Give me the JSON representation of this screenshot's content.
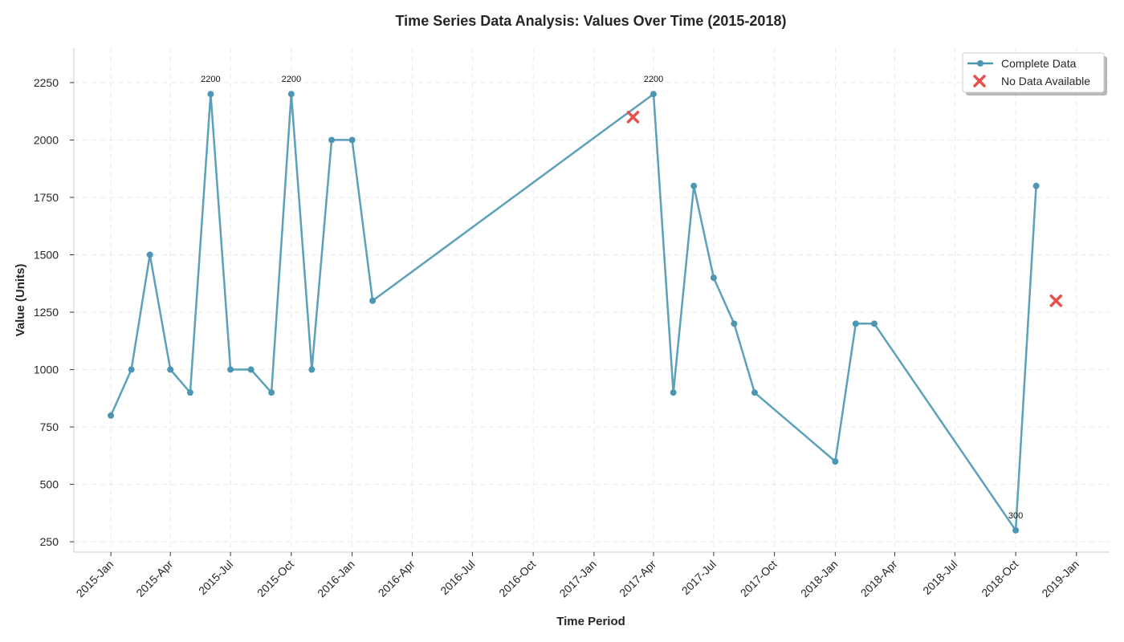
{
  "chart_data": {
    "type": "line",
    "title": "Time Series Data Analysis: Values Over Time (2015-2018)",
    "xlabel": "Time Period",
    "ylabel": "Value (Units)",
    "xlim": [
      "2014-11-06",
      "2019-02-20"
    ],
    "ylim": [
      205,
      2400
    ],
    "grid": true,
    "legend_position": "top-right",
    "x_ticks": [
      "2015-Jan",
      "2015-Apr",
      "2015-Jul",
      "2015-Oct",
      "2016-Jan",
      "2016-Apr",
      "2016-Jul",
      "2016-Oct",
      "2017-Jan",
      "2017-Apr",
      "2017-Jul",
      "2017-Oct",
      "2018-Jan",
      "2018-Apr",
      "2018-Jul",
      "2018-Oct",
      "2019-Jan"
    ],
    "x_tick_dates": [
      "2015-01-01",
      "2015-04-01",
      "2015-07-01",
      "2015-10-01",
      "2016-01-01",
      "2016-04-01",
      "2016-07-01",
      "2016-10-01",
      "2017-01-01",
      "2017-04-01",
      "2017-07-01",
      "2017-10-01",
      "2018-01-01",
      "2018-04-01",
      "2018-07-01",
      "2018-10-01",
      "2019-01-01"
    ],
    "y_ticks": [
      250,
      500,
      750,
      1000,
      1250,
      1500,
      1750,
      2000,
      2250
    ],
    "series": [
      {
        "name": "Complete Data",
        "color": "#4a96b3",
        "marker": "circle",
        "points": [
          {
            "x": "2015-01-01",
            "y": 800
          },
          {
            "x": "2015-02-01",
            "y": 1000
          },
          {
            "x": "2015-03-01",
            "y": 1500
          },
          {
            "x": "2015-04-01",
            "y": 1000
          },
          {
            "x": "2015-05-01",
            "y": 900
          },
          {
            "x": "2015-06-01",
            "y": 2200
          },
          {
            "x": "2015-07-01",
            "y": 1000
          },
          {
            "x": "2015-08-01",
            "y": 1000
          },
          {
            "x": "2015-09-01",
            "y": 900
          },
          {
            "x": "2015-10-01",
            "y": 2200
          },
          {
            "x": "2015-11-01",
            "y": 1000
          },
          {
            "x": "2015-12-01",
            "y": 2000
          },
          {
            "x": "2016-01-01",
            "y": 2000
          },
          {
            "x": "2016-02-01",
            "y": 1300
          },
          {
            "x": "2017-04-01",
            "y": 2200
          },
          {
            "x": "2017-05-01",
            "y": 900
          },
          {
            "x": "2017-06-01",
            "y": 1800
          },
          {
            "x": "2017-07-01",
            "y": 1400
          },
          {
            "x": "2017-08-01",
            "y": 1200
          },
          {
            "x": "2017-09-01",
            "y": 900
          },
          {
            "x": "2018-01-01",
            "y": 600
          },
          {
            "x": "2018-02-01",
            "y": 1200
          },
          {
            "x": "2018-03-01",
            "y": 1200
          },
          {
            "x": "2018-10-01",
            "y": 300
          },
          {
            "x": "2018-11-01",
            "y": 1800
          }
        ]
      },
      {
        "name": "No Data Available",
        "color": "#e8504a",
        "marker": "x",
        "points": [
          {
            "x": "2017-03-01",
            "y": 2100
          },
          {
            "x": "2018-12-01",
            "y": 1300
          }
        ]
      }
    ],
    "annotations": [
      {
        "x": "2015-06-01",
        "y": 2200,
        "text": "2200"
      },
      {
        "x": "2015-10-01",
        "y": 2200,
        "text": "2200"
      },
      {
        "x": "2017-04-01",
        "y": 2200,
        "text": "2200"
      },
      {
        "x": "2018-10-01",
        "y": 300,
        "text": "300"
      }
    ]
  }
}
